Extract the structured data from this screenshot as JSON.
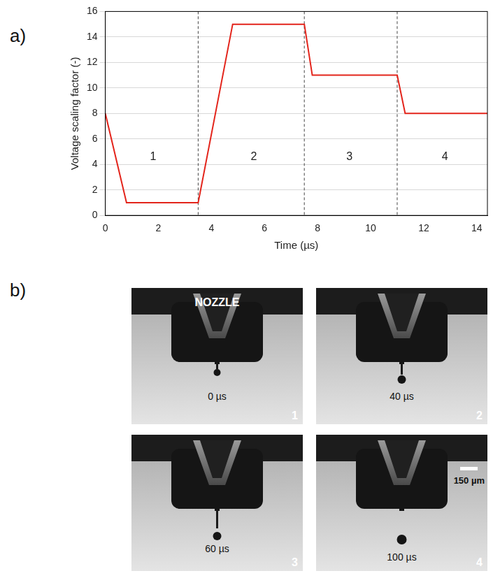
{
  "chart_data": {
    "type": "line",
    "x_label": "Time (µs)",
    "y_label": "Voltage scaling factor (-)",
    "x": [
      0,
      0.8,
      3.5,
      4.8,
      7.5,
      7.8,
      11,
      11.3,
      14.4
    ],
    "values": [
      8,
      1,
      1,
      15,
      15,
      11,
      11,
      8,
      8
    ],
    "color": "#e3241b",
    "line_style": "solid",
    "xlim": [
      0,
      14.4
    ],
    "xticks": [
      0,
      2,
      4,
      6,
      8,
      10,
      12,
      14
    ],
    "ylim": [
      0,
      16
    ],
    "yticks": [
      0,
      2,
      4,
      6,
      8,
      10,
      12,
      14,
      16
    ],
    "grid": "y",
    "dividers": [
      3.5,
      7.5,
      11
    ],
    "annotations": [
      {
        "text": "1",
        "x": 1.8,
        "y": 4.6
      },
      {
        "text": "2",
        "x": 5.6,
        "y": 4.6
      },
      {
        "text": "3",
        "x": 9.2,
        "y": 4.6
      },
      {
        "text": "4",
        "x": 12.8,
        "y": 4.6
      }
    ]
  },
  "figure": {
    "panel_labels": [
      "a)",
      "b)"
    ],
    "frames": [
      {
        "caption": "NOZZLE",
        "time": "0 µs",
        "number": "1"
      },
      {
        "time": "40 µs",
        "number": "2"
      },
      {
        "time": "60 µs",
        "number": "3"
      },
      {
        "time": "100 µs",
        "number": "4",
        "scale_bar": "150 µm"
      }
    ]
  }
}
